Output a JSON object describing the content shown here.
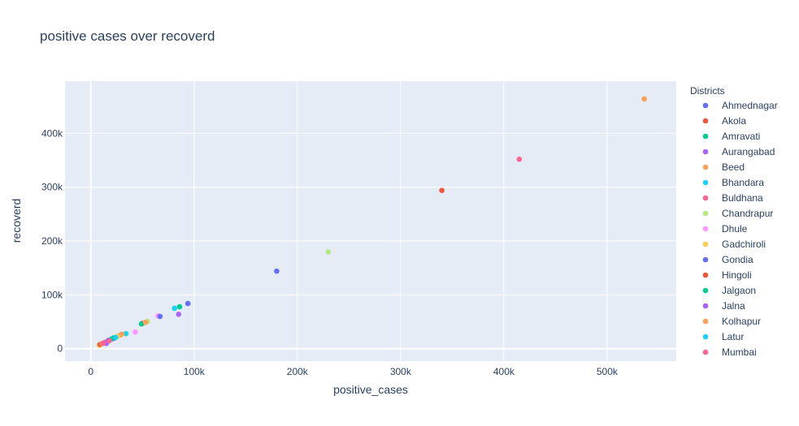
{
  "chart_data": {
    "type": "scatter",
    "title": "positive cases over recoverd",
    "xlabel": "positive_cases",
    "ylabel": "recoverd",
    "xlim": [
      -25000,
      567000
    ],
    "ylim": [
      -23000,
      497000
    ],
    "x_ticks": [
      0,
      100000,
      200000,
      300000,
      400000,
      500000
    ],
    "x_tick_labels": [
      "0",
      "100k",
      "200k",
      "300k",
      "400k",
      "500k"
    ],
    "y_ticks": [
      0,
      100000,
      200000,
      300000,
      400000
    ],
    "y_tick_labels": [
      "0",
      "100k",
      "200k",
      "300k",
      "400k"
    ],
    "grid": true,
    "legend_title": "Districts",
    "legend_position": "right",
    "series": [
      {
        "name": "Ahmednagar",
        "color": "#636efa",
        "points": [
          [
            180000,
            144000
          ],
          [
            94000,
            84000
          ],
          [
            17000,
            15500
          ]
        ]
      },
      {
        "name": "Akola",
        "color": "#EF553B",
        "points": [
          [
            340000,
            294000
          ],
          [
            14000,
            12000
          ]
        ]
      },
      {
        "name": "Amravati",
        "color": "#00cc96",
        "points": [
          [
            86000,
            78000
          ],
          [
            22000,
            20000
          ]
        ]
      },
      {
        "name": "Aurangabad",
        "color": "#ab63fa",
        "points": [
          [
            85000,
            64000
          ],
          [
            16000,
            13000
          ]
        ]
      },
      {
        "name": "Beed",
        "color": "#FFA15A",
        "points": [
          [
            536000,
            464000
          ],
          [
            28000,
            25000
          ]
        ]
      },
      {
        "name": "Bhandara",
        "color": "#19d3f3",
        "points": [
          [
            81000,
            75000
          ],
          [
            34000,
            28000
          ]
        ]
      },
      {
        "name": "Buldhana",
        "color": "#FF6692",
        "points": [
          [
            415000,
            352000
          ],
          [
            13000,
            11000
          ]
        ]
      },
      {
        "name": "Chandrapur",
        "color": "#B6E880",
        "points": [
          [
            230000,
            180000
          ],
          [
            55000,
            51000
          ]
        ]
      },
      {
        "name": "Dhule",
        "color": "#FF97FF",
        "points": [
          [
            43000,
            31000
          ],
          [
            65000,
            61000
          ]
        ]
      },
      {
        "name": "Gadchiroli",
        "color": "#FECB52",
        "points": [
          [
            8000,
            6500
          ],
          [
            26000,
            23000
          ]
        ]
      },
      {
        "name": "Gondia",
        "color": "#636efa",
        "points": [
          [
            67000,
            60000
          ],
          [
            22000,
            19000
          ]
        ]
      },
      {
        "name": "Hingoli",
        "color": "#EF553B",
        "points": [
          [
            50000,
            47000
          ],
          [
            9000,
            8000
          ]
        ]
      },
      {
        "name": "Jalgaon",
        "color": "#00cc96",
        "points": [
          [
            49000,
            46000
          ],
          [
            20000,
            18000
          ]
        ]
      },
      {
        "name": "Jalna",
        "color": "#ab63fa",
        "points": [
          [
            15000,
            10000
          ]
        ]
      },
      {
        "name": "Kolhapur",
        "color": "#FFA15A",
        "points": [
          [
            53000,
            49000
          ],
          [
            30000,
            27000
          ],
          [
            11000,
            9500
          ]
        ]
      },
      {
        "name": "Latur",
        "color": "#19d3f3",
        "points": [
          [
            24000,
            21000
          ]
        ]
      },
      {
        "name": "Mumbai",
        "color": "#FF6692",
        "points": [
          [
            12000,
            10000
          ],
          [
            18000,
            15000
          ]
        ]
      }
    ]
  }
}
